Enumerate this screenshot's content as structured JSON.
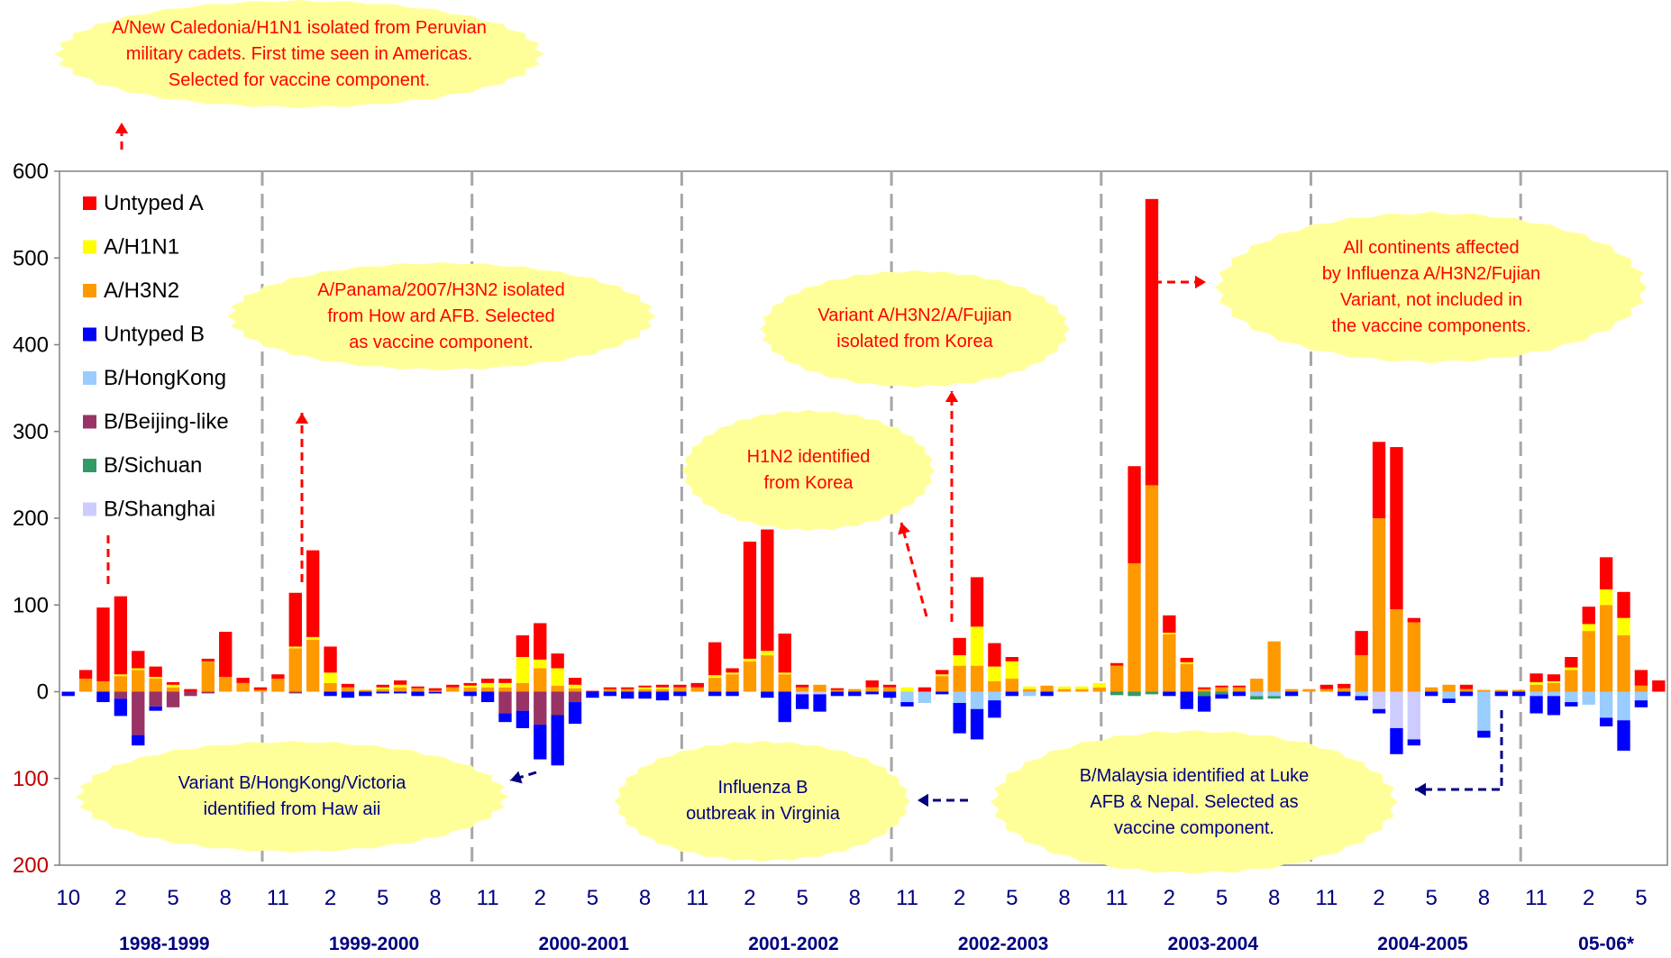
{
  "chart_data": {
    "type": "bar",
    "stacked": true,
    "ylim": [
      -200,
      600
    ],
    "y_ticks": [
      {
        "value": 600,
        "label": "600"
      },
      {
        "value": 500,
        "label": "500"
      },
      {
        "value": 400,
        "label": "400"
      },
      {
        "value": 300,
        "label": "300"
      },
      {
        "value": 200,
        "label": "200"
      },
      {
        "value": 100,
        "label": "100"
      },
      {
        "value": 0,
        "label": "0"
      },
      {
        "value": -100,
        "label": "100"
      },
      {
        "value": -200,
        "label": "200"
      }
    ],
    "x_tick_labels": [
      "10",
      "2",
      "5",
      "8",
      "11",
      "2",
      "5",
      "8",
      "11",
      "2",
      "5",
      "8",
      "11",
      "2",
      "5",
      "8",
      "11",
      "2",
      "5",
      "8",
      "11",
      "2",
      "5",
      "8",
      "11",
      "2",
      "5",
      "8",
      "11",
      "2",
      "5"
    ],
    "seasons": [
      "1998-1999",
      "1999-2000",
      "2000-2001",
      "2001-2002",
      "2002-2003",
      "2003-2004",
      "2004-2005",
      "05-06*"
    ],
    "legend_position": "top-left",
    "grid": "vertical dashed season separators",
    "series": [
      {
        "name": "Untyped A",
        "color": "#ff0000"
      },
      {
        "name": "A/H1N1",
        "color": "#ffff00"
      },
      {
        "name": "A/H3N2",
        "color": "#ff9900"
      },
      {
        "name": "Untyped B",
        "color": "#0000ff"
      },
      {
        "name": "B/HongKong",
        "color": "#99ccff"
      },
      {
        "name": "B/Beijing-like",
        "color": "#993366"
      },
      {
        "name": "B/Sichuan",
        "color": "#339966"
      },
      {
        "name": "B/Shanghai",
        "color": "#ccccff"
      }
    ],
    "bars": [
      {
        "pos": [
          0,
          0,
          0
        ],
        "neg": [
          5,
          0,
          0,
          0,
          0
        ]
      },
      {
        "pos": [
          10,
          0,
          15
        ],
        "neg": [
          0,
          0,
          0,
          0,
          0
        ]
      },
      {
        "pos": [
          85,
          0,
          12
        ],
        "neg": [
          12,
          0,
          0,
          0,
          0
        ]
      },
      {
        "pos": [
          90,
          2,
          18
        ],
        "neg": [
          20,
          0,
          8,
          0,
          0
        ]
      },
      {
        "pos": [
          20,
          2,
          25
        ],
        "neg": [
          12,
          0,
          50,
          0,
          0
        ]
      },
      {
        "pos": [
          12,
          2,
          15
        ],
        "neg": [
          5,
          0,
          17,
          0,
          0
        ]
      },
      {
        "pos": [
          3,
          3,
          5
        ],
        "neg": [
          0,
          0,
          18,
          0,
          0
        ]
      },
      {
        "pos": [
          3,
          0,
          0
        ],
        "neg": [
          0,
          0,
          5,
          0,
          0
        ]
      },
      {
        "pos": [
          3,
          0,
          35
        ],
        "neg": [
          0,
          0,
          2,
          0,
          0
        ]
      },
      {
        "pos": [
          52,
          0,
          17
        ],
        "neg": [
          0,
          0,
          0,
          0,
          0
        ]
      },
      {
        "pos": [
          6,
          0,
          10
        ],
        "neg": [
          0,
          0,
          0,
          0,
          0
        ]
      },
      {
        "pos": [
          3,
          0,
          2
        ],
        "neg": [
          0,
          0,
          0,
          0,
          0
        ]
      },
      {
        "pos": [
          5,
          0,
          15
        ],
        "neg": [
          0,
          0,
          0,
          0,
          0
        ]
      },
      {
        "pos": [
          62,
          2,
          50
        ],
        "neg": [
          0,
          0,
          2,
          0,
          0
        ]
      },
      {
        "pos": [
          100,
          3,
          60
        ],
        "neg": [
          0,
          0,
          0,
          0,
          0
        ]
      },
      {
        "pos": [
          30,
          12,
          10
        ],
        "neg": [
          5,
          0,
          0,
          0,
          0
        ]
      },
      {
        "pos": [
          4,
          0,
          5
        ],
        "neg": [
          7,
          0,
          0,
          0,
          0
        ]
      },
      {
        "pos": [
          0,
          0,
          2
        ],
        "neg": [
          5,
          0,
          0,
          0,
          0
        ]
      },
      {
        "pos": [
          3,
          2,
          3
        ],
        "neg": [
          2,
          0,
          0,
          0,
          0
        ]
      },
      {
        "pos": [
          5,
          3,
          5
        ],
        "neg": [
          2,
          0,
          0,
          0,
          0
        ]
      },
      {
        "pos": [
          2,
          0,
          4
        ],
        "neg": [
          5,
          0,
          0,
          0,
          0
        ]
      },
      {
        "pos": [
          3,
          1,
          0
        ],
        "neg": [
          2,
          0,
          0,
          0,
          0
        ]
      },
      {
        "pos": [
          3,
          0,
          5
        ],
        "neg": [
          0,
          0,
          0,
          0,
          0
        ]
      },
      {
        "pos": [
          3,
          2,
          5
        ],
        "neg": [
          5,
          0,
          0,
          0,
          0
        ]
      },
      {
        "pos": [
          5,
          5,
          5
        ],
        "neg": [
          12,
          0,
          0,
          0,
          0
        ]
      },
      {
        "pos": [
          5,
          5,
          5
        ],
        "neg": [
          10,
          0,
          25,
          0,
          0
        ]
      },
      {
        "pos": [
          25,
          30,
          10
        ],
        "neg": [
          20,
          0,
          22,
          0,
          0
        ]
      },
      {
        "pos": [
          42,
          10,
          27
        ],
        "neg": [
          40,
          0,
          38,
          0,
          0
        ]
      },
      {
        "pos": [
          17,
          20,
          7
        ],
        "neg": [
          58,
          0,
          27,
          0,
          0
        ]
      },
      {
        "pos": [
          8,
          4,
          4
        ],
        "neg": [
          25,
          0,
          12,
          0,
          0
        ]
      },
      {
        "pos": [
          1,
          0,
          0
        ],
        "neg": [
          7,
          0,
          0,
          0,
          0
        ]
      },
      {
        "pos": [
          2,
          0,
          3
        ],
        "neg": [
          5,
          0,
          0,
          0,
          0
        ]
      },
      {
        "pos": [
          2,
          0,
          3
        ],
        "neg": [
          8,
          0,
          0,
          0,
          0
        ]
      },
      {
        "pos": [
          2,
          2,
          3
        ],
        "neg": [
          8,
          0,
          0,
          0,
          0
        ]
      },
      {
        "pos": [
          3,
          2,
          3
        ],
        "neg": [
          10,
          0,
          0,
          0,
          0
        ]
      },
      {
        "pos": [
          3,
          0,
          5
        ],
        "neg": [
          5,
          0,
          0,
          0,
          0
        ]
      },
      {
        "pos": [
          5,
          0,
          5
        ],
        "neg": [
          0,
          0,
          0,
          0,
          0
        ]
      },
      {
        "pos": [
          38,
          3,
          16
        ],
        "neg": [
          5,
          0,
          0,
          0,
          0
        ]
      },
      {
        "pos": [
          5,
          2,
          20
        ],
        "neg": [
          5,
          0,
          0,
          0,
          0
        ]
      },
      {
        "pos": [
          135,
          3,
          35
        ],
        "neg": [
          0,
          0,
          0,
          0,
          0
        ]
      },
      {
        "pos": [
          140,
          5,
          42
        ],
        "neg": [
          7,
          0,
          0,
          0,
          0
        ]
      },
      {
        "pos": [
          45,
          2,
          20
        ],
        "neg": [
          35,
          0,
          0,
          0,
          0
        ]
      },
      {
        "pos": [
          3,
          0,
          5
        ],
        "neg": [
          17,
          0,
          0,
          0,
          3
        ]
      },
      {
        "pos": [
          0,
          0,
          8
        ],
        "neg": [
          20,
          0,
          0,
          0,
          3
        ]
      },
      {
        "pos": [
          2,
          0,
          2
        ],
        "neg": [
          5,
          0,
          0,
          0,
          0
        ]
      },
      {
        "pos": [
          0,
          0,
          3
        ],
        "neg": [
          5,
          0,
          0,
          0,
          0
        ]
      },
      {
        "pos": [
          8,
          0,
          5
        ],
        "neg": [
          3,
          0,
          0,
          0,
          0
        ]
      },
      {
        "pos": [
          3,
          0,
          5
        ],
        "neg": [
          7,
          0,
          0,
          0,
          0
        ]
      },
      {
        "pos": [
          0,
          5,
          0
        ],
        "neg": [
          5,
          12,
          0,
          0,
          0
        ]
      },
      {
        "pos": [
          5,
          0,
          0
        ],
        "neg": [
          0,
          13,
          0,
          0,
          0
        ]
      },
      {
        "pos": [
          5,
          2,
          18
        ],
        "neg": [
          3,
          0,
          0,
          0,
          0
        ]
      },
      {
        "pos": [
          20,
          12,
          30
        ],
        "neg": [
          35,
          13,
          0,
          0,
          0
        ]
      },
      {
        "pos": [
          57,
          45,
          30
        ],
        "neg": [
          35,
          20,
          0,
          0,
          0
        ]
      },
      {
        "pos": [
          27,
          17,
          12
        ],
        "neg": [
          20,
          10,
          0,
          0,
          0
        ]
      },
      {
        "pos": [
          5,
          20,
          15
        ],
        "neg": [
          5,
          0,
          0,
          0,
          0
        ]
      },
      {
        "pos": [
          0,
          3,
          3
        ],
        "neg": [
          0,
          5,
          0,
          0,
          0
        ]
      },
      {
        "pos": [
          0,
          0,
          7
        ],
        "neg": [
          5,
          0,
          0,
          0,
          0
        ]
      },
      {
        "pos": [
          0,
          3,
          3
        ],
        "neg": [
          0,
          0,
          0,
          0,
          0
        ]
      },
      {
        "pos": [
          0,
          3,
          3
        ],
        "neg": [
          0,
          0,
          0,
          0,
          0
        ]
      },
      {
        "pos": [
          0,
          5,
          5
        ],
        "neg": [
          0,
          0,
          0,
          0,
          0
        ]
      },
      {
        "pos": [
          3,
          0,
          30
        ],
        "neg": [
          0,
          0,
          0,
          4,
          0
        ]
      },
      {
        "pos": [
          112,
          0,
          148
        ],
        "neg": [
          0,
          0,
          0,
          5,
          0
        ]
      },
      {
        "pos": [
          330,
          0,
          238
        ],
        "neg": [
          0,
          0,
          0,
          3,
          0
        ]
      },
      {
        "pos": [
          20,
          2,
          66
        ],
        "neg": [
          5,
          0,
          0,
          0,
          0
        ]
      },
      {
        "pos": [
          5,
          2,
          32
        ],
        "neg": [
          20,
          0,
          0,
          0,
          0
        ]
      },
      {
        "pos": [
          2,
          0,
          3
        ],
        "neg": [
          18,
          0,
          0,
          5,
          0
        ]
      },
      {
        "pos": [
          2,
          0,
          5
        ],
        "neg": [
          5,
          0,
          0,
          3,
          0
        ]
      },
      {
        "pos": [
          2,
          0,
          5
        ],
        "neg": [
          5,
          0,
          0,
          0,
          0
        ]
      },
      {
        "pos": [
          0,
          0,
          15
        ],
        "neg": [
          0,
          5,
          0,
          4,
          0
        ]
      },
      {
        "pos": [
          0,
          0,
          58
        ],
        "neg": [
          0,
          5,
          0,
          3,
          0
        ]
      },
      {
        "pos": [
          0,
          0,
          3
        ],
        "neg": [
          5,
          0,
          0,
          0,
          0
        ]
      },
      {
        "pos": [
          0,
          0,
          3
        ],
        "neg": [
          0,
          0,
          0,
          0,
          0
        ]
      },
      {
        "pos": [
          5,
          0,
          3
        ],
        "neg": [
          0,
          0,
          0,
          0,
          0
        ]
      },
      {
        "pos": [
          5,
          0,
          4
        ],
        "neg": [
          5,
          0,
          0,
          0,
          0
        ]
      },
      {
        "pos": [
          28,
          0,
          42
        ],
        "neg": [
          5,
          5,
          0,
          0,
          0
        ]
      },
      {
        "pos": [
          88,
          0,
          200
        ],
        "neg": [
          5,
          0,
          0,
          0,
          20
        ]
      },
      {
        "pos": [
          187,
          0,
          95
        ],
        "neg": [
          30,
          0,
          0,
          0,
          42
        ]
      },
      {
        "pos": [
          5,
          0,
          80
        ],
        "neg": [
          7,
          0,
          0,
          0,
          55
        ]
      },
      {
        "pos": [
          0,
          0,
          5
        ],
        "neg": [
          5,
          0,
          0,
          0,
          0
        ]
      },
      {
        "pos": [
          0,
          0,
          8
        ],
        "neg": [
          5,
          8,
          0,
          0,
          0
        ]
      },
      {
        "pos": [
          5,
          0,
          3
        ],
        "neg": [
          5,
          0,
          0,
          0,
          0
        ]
      },
      {
        "pos": [
          0,
          0,
          2
        ],
        "neg": [
          8,
          45,
          0,
          0,
          0
        ]
      },
      {
        "pos": [
          0,
          0,
          2
        ],
        "neg": [
          5,
          0,
          0,
          0,
          0
        ]
      },
      {
        "pos": [
          0,
          0,
          2
        ],
        "neg": [
          5,
          0,
          0,
          0,
          0
        ]
      },
      {
        "pos": [
          10,
          3,
          8
        ],
        "neg": [
          20,
          5,
          0,
          0,
          0
        ]
      },
      {
        "pos": [
          8,
          2,
          10
        ],
        "neg": [
          22,
          5,
          0,
          0,
          0
        ]
      },
      {
        "pos": [
          12,
          3,
          25
        ],
        "neg": [
          5,
          12,
          0,
          0,
          0
        ]
      },
      {
        "pos": [
          20,
          8,
          70
        ],
        "neg": [
          0,
          15,
          0,
          0,
          0
        ]
      },
      {
        "pos": [
          37,
          18,
          100
        ],
        "neg": [
          10,
          30,
          0,
          0,
          0
        ]
      },
      {
        "pos": [
          30,
          20,
          65
        ],
        "neg": [
          35,
          33,
          0,
          0,
          0
        ]
      },
      {
        "pos": [
          18,
          0,
          7
        ],
        "neg": [
          8,
          10,
          0,
          0,
          0
        ]
      },
      {
        "pos": [
          13,
          0,
          0
        ],
        "neg": [
          0,
          0,
          0,
          0,
          0
        ]
      }
    ]
  },
  "annotations": {
    "caledonia": "A/New Caledonia/H1N1 isolated from Peruvian\nmilitary cadets. First time seen in Americas.\nSelected for vaccine component.",
    "panama": "A/Panama/2007/H3N2 isolated\nfrom How ard AFB. Selected\nas vaccine component.",
    "fujian_korea": "Variant A/H3N2/A/Fujian\nisolated from Korea",
    "h1n2": "H1N2 identified\nfrom Korea",
    "continents": "All continents affected\nby Influenza A/H3N2/Fujian\nVariant, not included in\nthe vaccine components.",
    "hongkong": "Variant B/HongKong/Victoria\nidentified from Haw aii",
    "virginia": "Influenza B\noutbreak in Virginia",
    "malaysia": "B/Malaysia identified at Luke\nAFB & Nepal.  Selected as\nvaccine component."
  }
}
